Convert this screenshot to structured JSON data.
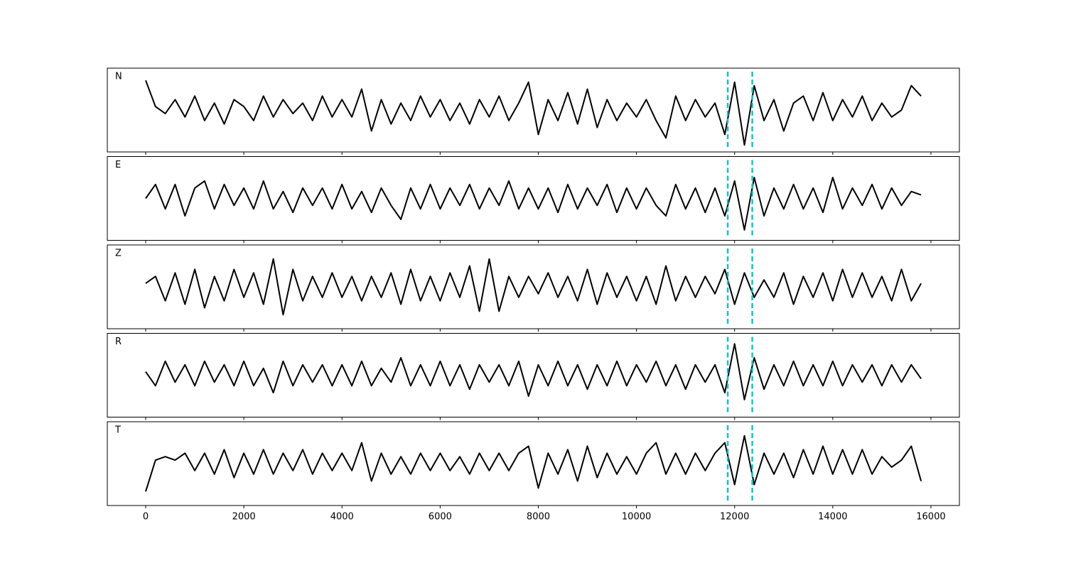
{
  "chart_data": {
    "type": "line",
    "x": [
      0,
      200,
      400,
      600,
      800,
      1000,
      1200,
      1400,
      1600,
      1800,
      2000,
      2200,
      2400,
      2600,
      2800,
      3000,
      3200,
      3400,
      3600,
      3800,
      4000,
      4200,
      4400,
      4600,
      4800,
      5000,
      5200,
      5400,
      5600,
      5800,
      6000,
      6200,
      6400,
      6600,
      6800,
      7000,
      7200,
      7400,
      7600,
      7800,
      8000,
      8200,
      8400,
      8600,
      8800,
      9000,
      9200,
      9400,
      9600,
      9800,
      10000,
      10200,
      10400,
      10600,
      10800,
      11000,
      11200,
      11400,
      11600,
      11800,
      12000,
      12200,
      12400,
      12600,
      12800,
      13000,
      13200,
      13400,
      13600,
      13800,
      14000,
      14200,
      14400,
      14600,
      14800,
      15000,
      15200,
      15400,
      15600,
      15800
    ],
    "xlim": [
      -782,
      16580
    ],
    "xticks": [
      0,
      2000,
      4000,
      6000,
      8000,
      10000,
      12000,
      14000,
      16000
    ],
    "ylim": [
      -1.2,
      1.2
    ],
    "vlines": [
      11860,
      12360
    ],
    "vline_color": "#17becf",
    "series": [
      {
        "name": "N",
        "color": "#000000",
        "values": [
          0.85,
          0.1,
          -0.1,
          0.3,
          -0.2,
          0.4,
          -0.3,
          0.2,
          -0.4,
          0.3,
          0.1,
          -0.3,
          0.4,
          -0.2,
          0.3,
          -0.1,
          0.2,
          -0.3,
          0.4,
          -0.2,
          0.3,
          -0.2,
          0.6,
          -0.6,
          0.3,
          -0.4,
          0.2,
          -0.3,
          0.4,
          -0.2,
          0.3,
          -0.3,
          0.2,
          -0.4,
          0.3,
          -0.2,
          0.4,
          -0.3,
          0.2,
          0.8,
          -0.7,
          0.3,
          -0.3,
          0.5,
          -0.4,
          0.6,
          -0.5,
          0.3,
          -0.3,
          0.2,
          -0.2,
          0.3,
          -0.3,
          -0.8,
          0.4,
          -0.3,
          0.3,
          -0.2,
          0.2,
          -0.7,
          0.8,
          -1.0,
          0.7,
          -0.3,
          0.3,
          -0.6,
          0.2,
          0.4,
          -0.3,
          0.5,
          -0.3,
          0.3,
          -0.2,
          0.4,
          -0.3,
          0.2,
          -0.2,
          0.0,
          0.7,
          0.4
        ]
      },
      {
        "name": "E",
        "color": "#000000",
        "values": [
          0.0,
          0.4,
          -0.3,
          0.4,
          -0.5,
          0.3,
          0.5,
          -0.3,
          0.4,
          -0.2,
          0.3,
          -0.3,
          0.5,
          -0.3,
          0.2,
          -0.4,
          0.3,
          -0.2,
          0.3,
          -0.3,
          0.4,
          -0.3,
          0.2,
          -0.4,
          0.3,
          -0.2,
          -0.6,
          0.3,
          -0.3,
          0.4,
          -0.3,
          0.3,
          -0.2,
          0.4,
          -0.3,
          0.3,
          -0.2,
          0.5,
          -0.3,
          0.3,
          -0.3,
          0.3,
          -0.4,
          0.4,
          -0.3,
          0.3,
          -0.2,
          0.4,
          -0.4,
          0.3,
          -0.3,
          0.3,
          -0.2,
          -0.5,
          0.4,
          -0.3,
          0.3,
          -0.4,
          0.3,
          -0.5,
          0.5,
          -0.9,
          0.6,
          -0.5,
          0.3,
          -0.3,
          0.4,
          -0.3,
          0.3,
          -0.4,
          0.6,
          -0.3,
          0.3,
          -0.2,
          0.4,
          -0.3,
          0.3,
          -0.2,
          0.2,
          0.1
        ]
      },
      {
        "name": "Z",
        "color": "#000000",
        "values": [
          0.1,
          0.3,
          -0.4,
          0.4,
          -0.5,
          0.5,
          -0.6,
          0.3,
          -0.4,
          0.5,
          -0.3,
          0.4,
          -0.5,
          0.8,
          -0.8,
          0.5,
          -0.4,
          0.3,
          -0.3,
          0.4,
          -0.3,
          0.3,
          -0.4,
          0.3,
          -0.3,
          0.4,
          -0.5,
          0.5,
          -0.4,
          0.3,
          -0.4,
          0.4,
          -0.3,
          0.6,
          -0.7,
          0.8,
          -0.7,
          0.3,
          -0.3,
          0.3,
          -0.2,
          0.4,
          -0.3,
          0.3,
          -0.4,
          0.5,
          -0.5,
          0.4,
          -0.3,
          0.3,
          -0.4,
          0.3,
          -0.5,
          0.6,
          -0.4,
          0.3,
          -0.3,
          0.3,
          -0.2,
          0.5,
          -0.5,
          0.4,
          -0.3,
          0.2,
          -0.3,
          0.4,
          -0.5,
          0.3,
          -0.3,
          0.4,
          -0.4,
          0.5,
          -0.3,
          0.4,
          -0.3,
          0.3,
          -0.4,
          0.5,
          -0.4,
          0.1
        ]
      },
      {
        "name": "R",
        "color": "#000000",
        "values": [
          0.1,
          -0.3,
          0.4,
          -0.2,
          0.3,
          -0.3,
          0.4,
          -0.2,
          0.3,
          -0.3,
          0.4,
          -0.3,
          0.2,
          -0.5,
          0.4,
          -0.3,
          0.3,
          -0.2,
          0.3,
          -0.3,
          0.3,
          -0.3,
          0.4,
          -0.3,
          0.2,
          -0.2,
          0.5,
          -0.3,
          0.3,
          -0.3,
          0.4,
          -0.3,
          0.3,
          -0.4,
          0.3,
          -0.2,
          0.3,
          -0.3,
          0.4,
          -0.6,
          0.3,
          -0.3,
          0.4,
          -0.3,
          0.3,
          -0.4,
          0.3,
          -0.3,
          0.4,
          -0.3,
          0.3,
          -0.2,
          0.4,
          -0.3,
          0.3,
          -0.4,
          0.3,
          -0.2,
          0.3,
          -0.5,
          0.9,
          -0.7,
          0.5,
          -0.4,
          0.3,
          -0.3,
          0.4,
          -0.3,
          0.3,
          -0.3,
          0.4,
          -0.3,
          0.3,
          -0.2,
          0.3,
          -0.3,
          0.3,
          -0.2,
          0.3,
          -0.1
        ]
      },
      {
        "name": "T",
        "color": "#000000",
        "values": [
          -0.8,
          0.1,
          0.2,
          0.1,
          0.3,
          -0.2,
          0.3,
          -0.3,
          0.4,
          -0.4,
          0.3,
          -0.3,
          0.4,
          -0.3,
          0.3,
          -0.2,
          0.4,
          -0.3,
          0.3,
          -0.2,
          0.3,
          -0.2,
          0.6,
          -0.5,
          0.3,
          -0.3,
          0.2,
          -0.3,
          0.3,
          -0.2,
          0.3,
          -0.2,
          0.2,
          -0.3,
          0.3,
          -0.2,
          0.3,
          -0.2,
          0.3,
          0.5,
          -0.7,
          0.3,
          -0.3,
          0.4,
          -0.5,
          0.5,
          -0.4,
          0.3,
          -0.3,
          0.2,
          -0.3,
          0.3,
          0.6,
          -0.3,
          0.3,
          -0.3,
          0.3,
          -0.2,
          0.3,
          0.6,
          -0.6,
          0.8,
          -0.6,
          0.3,
          -0.3,
          0.3,
          -0.4,
          0.4,
          -0.3,
          0.5,
          -0.3,
          0.4,
          -0.3,
          0.4,
          -0.3,
          0.2,
          -0.1,
          0.1,
          0.5,
          -0.5
        ]
      }
    ]
  }
}
